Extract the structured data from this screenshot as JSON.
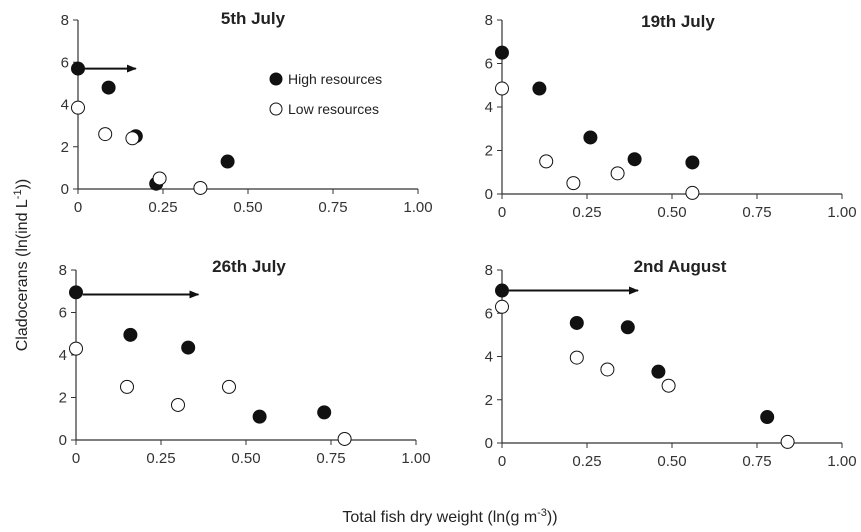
{
  "figure": {
    "ylabel": "Cladocerans (ln(ind L",
    "ylabel_sup": "-1",
    "ylabel_end": "))",
    "xlabel": "Total fish dry weight (ln(g m",
    "xlabel_sup": "-3",
    "xlabel_end": "))"
  },
  "legend": {
    "high": "High resources",
    "low": "Low resources",
    "high_color": "#111111",
    "low_color": "#ffffff"
  },
  "chart_data": [
    {
      "type": "scatter",
      "title": "5th July",
      "xlim": [
        0,
        1
      ],
      "ylim": [
        0,
        8
      ],
      "xticks": [
        "0",
        "0.25",
        "0.50",
        "0.75",
        "1.00"
      ],
      "yticks": [
        "0",
        "2",
        "4",
        "6",
        "8"
      ],
      "arrow": [
        0.02,
        0.17
      ],
      "arrow_y": 5.7,
      "series": [
        {
          "name": "High resources",
          "points": [
            [
              0,
              5.7
            ],
            [
              0.09,
              4.8
            ],
            [
              0.17,
              2.5
            ],
            [
              0.23,
              0.25
            ],
            [
              0.44,
              1.3
            ]
          ]
        },
        {
          "name": "Low resources",
          "points": [
            [
              0,
              3.85
            ],
            [
              0.08,
              2.6
            ],
            [
              0.16,
              2.4
            ],
            [
              0.24,
              0.5
            ],
            [
              0.36,
              0.05
            ]
          ]
        }
      ]
    },
    {
      "type": "scatter",
      "title": "19th July",
      "xlim": [
        0,
        1
      ],
      "ylim": [
        0,
        8
      ],
      "xticks": [
        "0",
        "0.25",
        "0.50",
        "0.75",
        "1.00"
      ],
      "yticks": [
        "0",
        "2",
        "4",
        "6",
        "8"
      ],
      "series": [
        {
          "name": "High resources",
          "points": [
            [
              0,
              6.5
            ],
            [
              0.11,
              4.85
            ],
            [
              0.26,
              2.6
            ],
            [
              0.39,
              1.6
            ],
            [
              0.56,
              1.45
            ]
          ]
        },
        {
          "name": "Low resources",
          "points": [
            [
              0,
              4.85
            ],
            [
              0.13,
              1.5
            ],
            [
              0.21,
              0.5
            ],
            [
              0.34,
              0.95
            ],
            [
              0.56,
              0.05
            ]
          ]
        }
      ]
    },
    {
      "type": "scatter",
      "title": "26th July",
      "xlim": [
        0,
        1
      ],
      "ylim": [
        0,
        8
      ],
      "xticks": [
        "0",
        "0.25",
        "0.50",
        "0.75",
        "1.00"
      ],
      "yticks": [
        "0",
        "2",
        "4",
        "6",
        "8"
      ],
      "arrow": [
        0.02,
        0.36
      ],
      "arrow_y": 6.85,
      "series": [
        {
          "name": "High resources",
          "points": [
            [
              0,
              6.95
            ],
            [
              0.16,
              4.95
            ],
            [
              0.33,
              4.35
            ],
            [
              0.54,
              1.1
            ],
            [
              0.73,
              1.3
            ]
          ]
        },
        {
          "name": "Low resources",
          "points": [
            [
              0,
              4.3
            ],
            [
              0.15,
              2.5
            ],
            [
              0.3,
              1.65
            ],
            [
              0.45,
              2.5
            ],
            [
              0.79,
              0.05
            ]
          ]
        }
      ]
    },
    {
      "type": "scatter",
      "title": "2nd August",
      "xlim": [
        0,
        1
      ],
      "ylim": [
        0,
        8
      ],
      "xticks": [
        "0",
        "0.25",
        "0.50",
        "0.75",
        "1.00"
      ],
      "yticks": [
        "0",
        "2",
        "4",
        "6",
        "8"
      ],
      "arrow": [
        0.02,
        0.4
      ],
      "arrow_y": 7.05,
      "series": [
        {
          "name": "High resources",
          "points": [
            [
              0,
              7.05
            ],
            [
              0.22,
              5.55
            ],
            [
              0.37,
              5.35
            ],
            [
              0.46,
              3.3
            ],
            [
              0.78,
              1.2
            ]
          ]
        },
        {
          "name": "Low resources",
          "points": [
            [
              0,
              6.3
            ],
            [
              0.22,
              3.95
            ],
            [
              0.31,
              3.4
            ],
            [
              0.49,
              2.65
            ],
            [
              0.84,
              0.05
            ]
          ]
        }
      ]
    }
  ]
}
